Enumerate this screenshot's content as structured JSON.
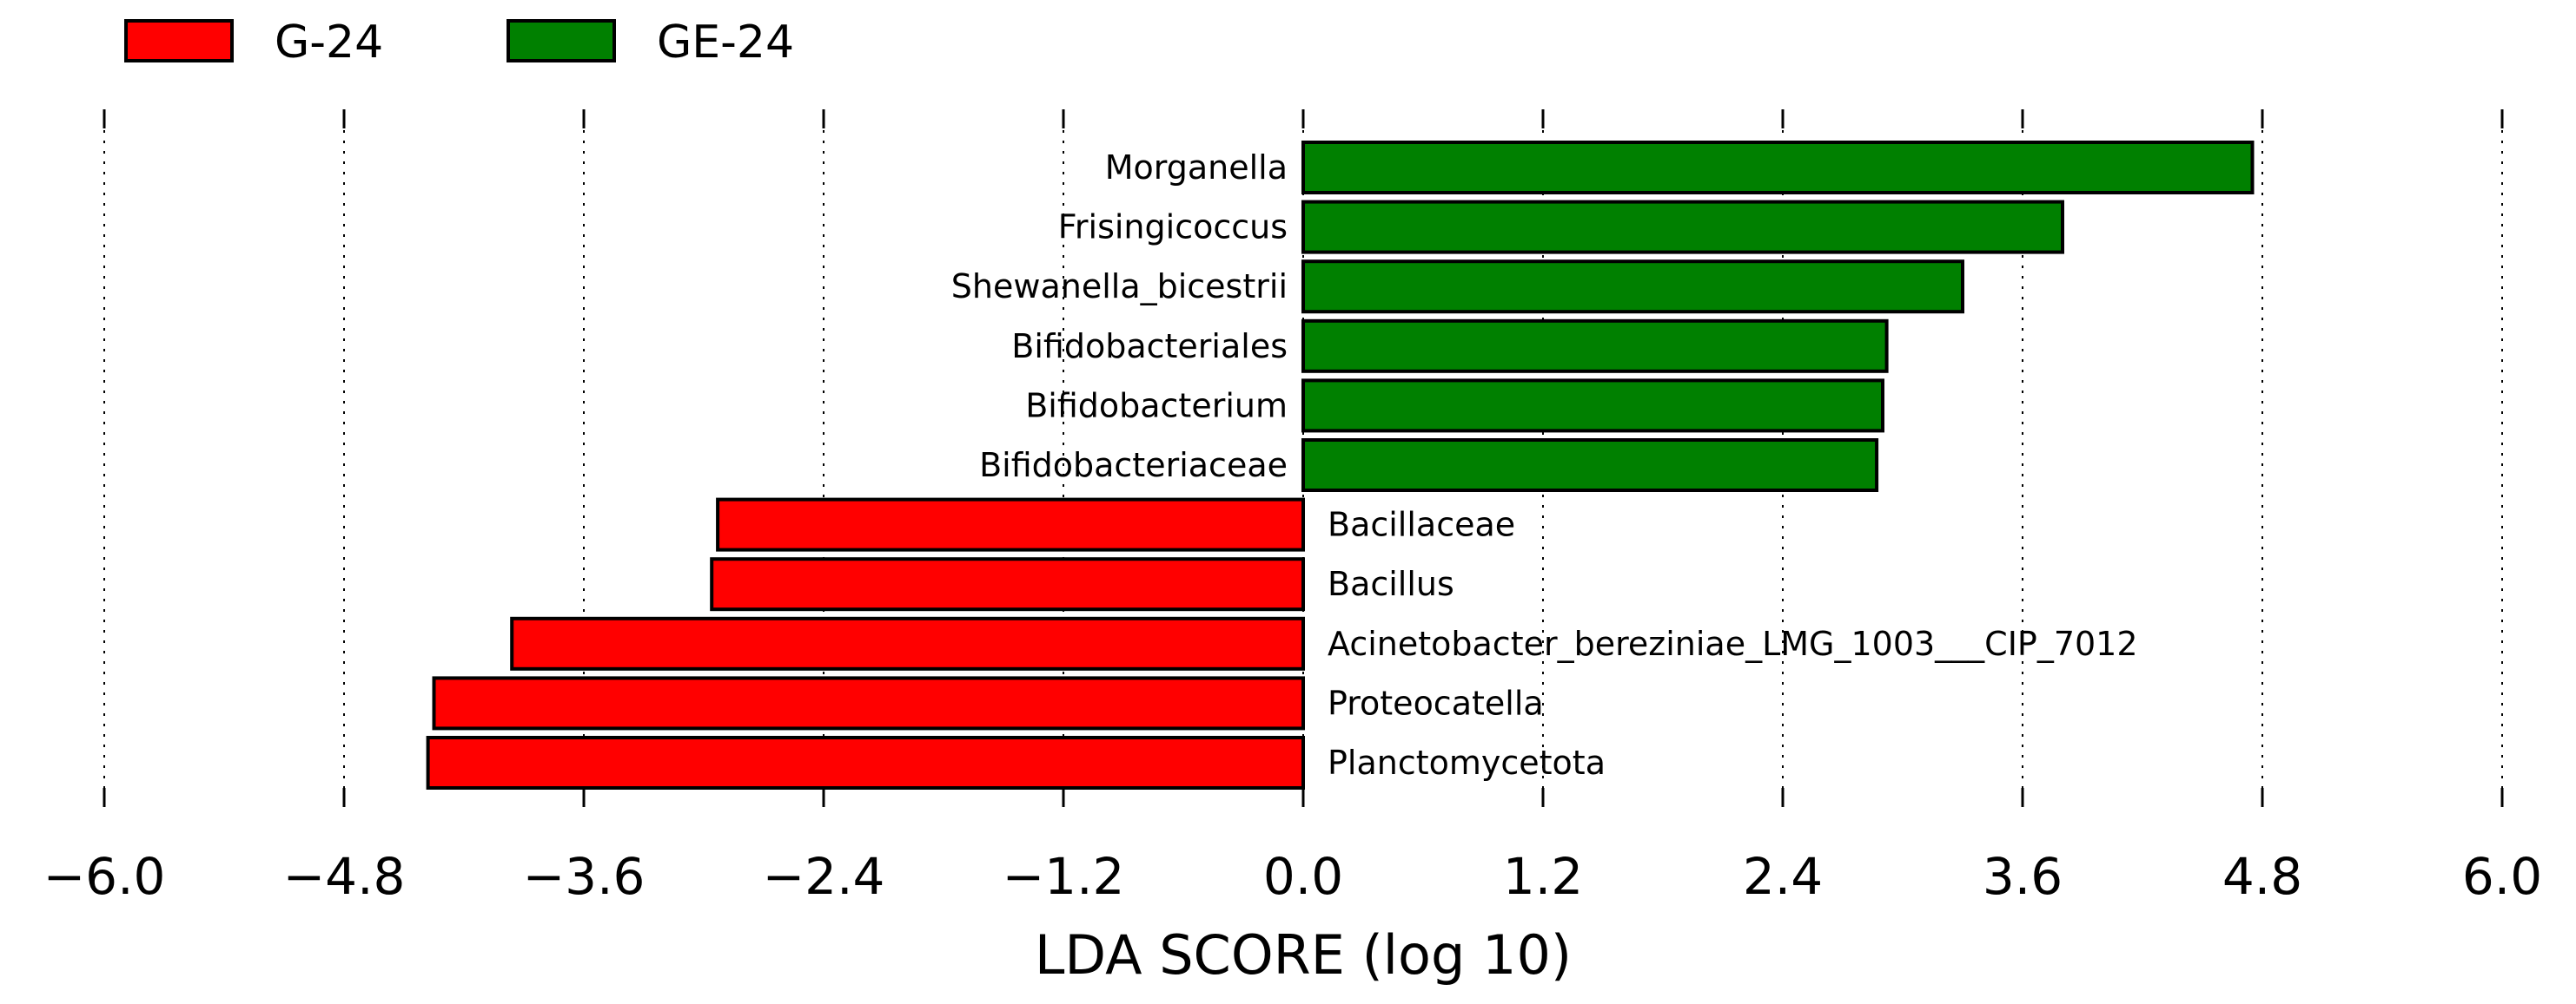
{
  "chart_data": {
    "type": "bar",
    "orientation": "horizontal",
    "title": "",
    "xlabel": "LDA SCORE (log 10)",
    "ylabel": "",
    "xlim": [
      -6.0,
      6.0
    ],
    "xticks": [
      "−6.0",
      "−4.8",
      "−3.6",
      "−2.4",
      "−1.2",
      "0.0",
      "1.2",
      "2.4",
      "3.6",
      "4.8",
      "6.0"
    ],
    "xtick_values": [
      -6.0,
      -4.8,
      -3.6,
      -2.4,
      -1.2,
      0.0,
      1.2,
      2.4,
      3.6,
      4.8,
      6.0
    ],
    "grid": "vertical dotted",
    "legend_position": "top-left",
    "series": [
      {
        "name": "G-24",
        "color": "#ff0000"
      },
      {
        "name": "GE-24",
        "color": "#008000"
      }
    ],
    "categories": [
      "Morganella",
      "Frisingicoccus",
      "Shewanella_bicestrii",
      "Bifidobacteriales",
      "Bifidobacterium",
      "Bifidobacteriaceae",
      "Bacillaceae",
      "Bacillus",
      "Acinetobacter_bereziniae_LMG_1003___CIP_7012",
      "Proteocatella",
      "Planctomycetota"
    ],
    "values": [
      4.75,
      3.8,
      3.3,
      2.92,
      2.9,
      2.87,
      -2.93,
      -2.96,
      -3.96,
      -4.35,
      -4.38
    ],
    "groups": [
      "GE-24",
      "GE-24",
      "GE-24",
      "GE-24",
      "GE-24",
      "GE-24",
      "G-24",
      "G-24",
      "G-24",
      "G-24",
      "G-24"
    ]
  }
}
